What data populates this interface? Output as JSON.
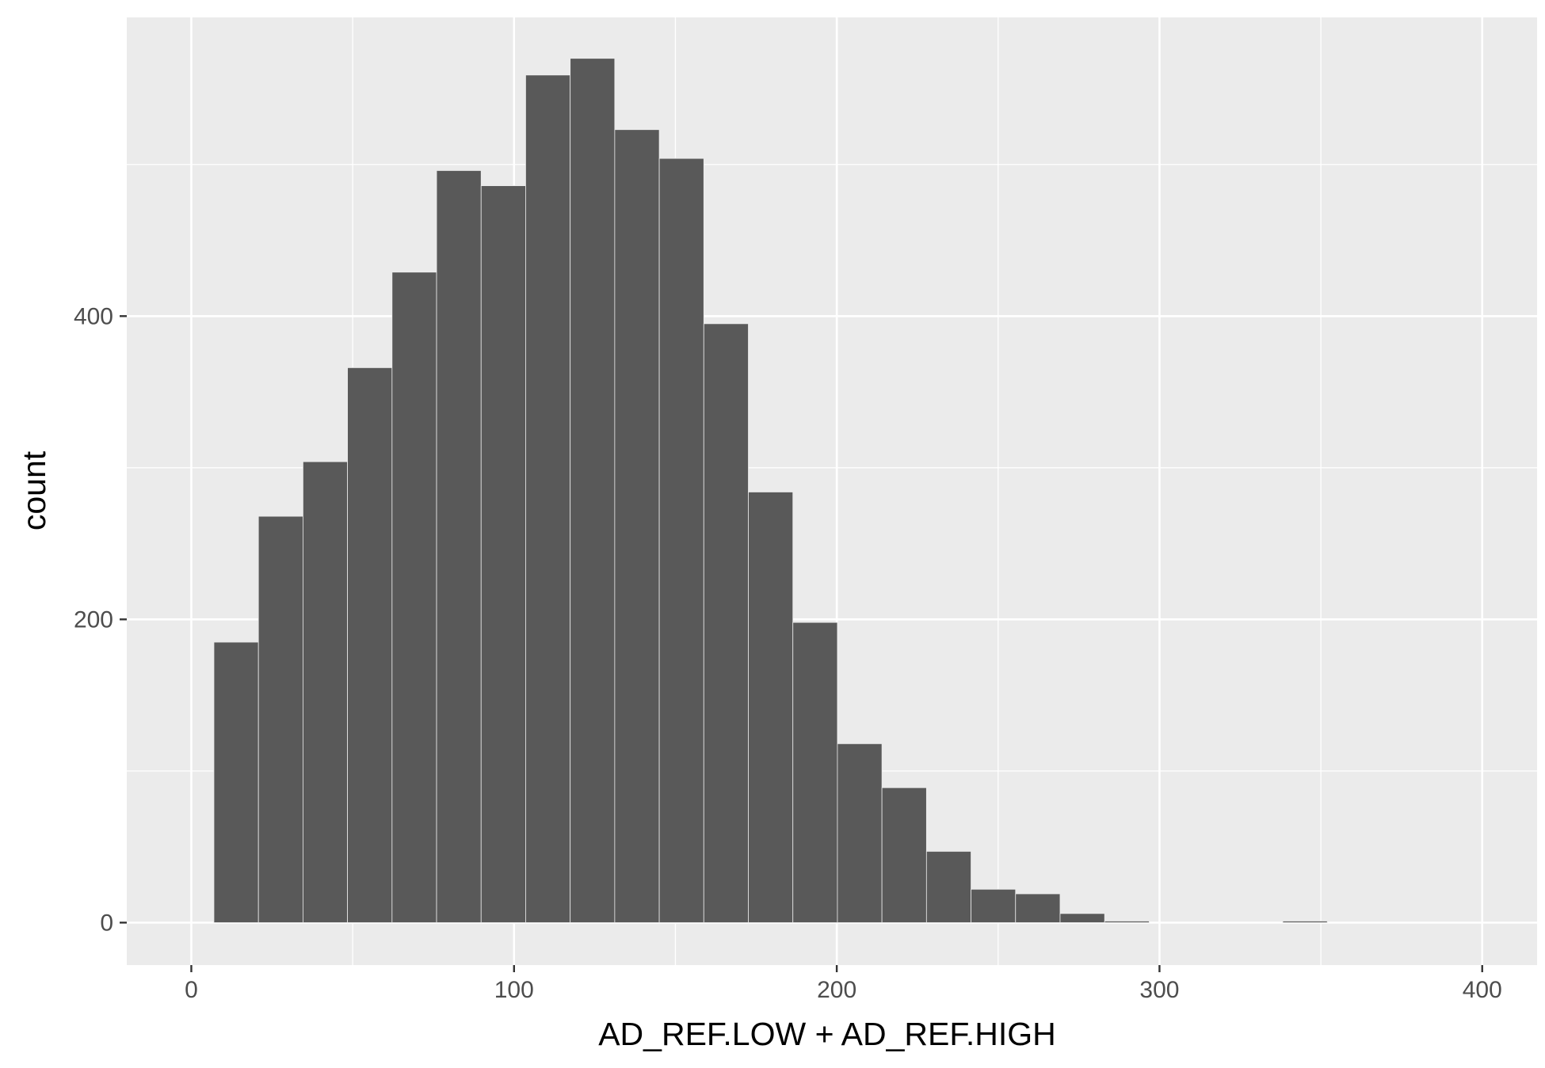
{
  "chart_data": {
    "type": "bar",
    "chart_style": "histogram",
    "title": "",
    "xlabel": "AD_REF.LOW + AD_REF.HIGH",
    "ylabel": "count",
    "xlim": [
      -20,
      417
    ],
    "ylim": [
      -28,
      597
    ],
    "grid": true,
    "x_ticks": [
      0,
      100,
      200,
      300,
      400
    ],
    "y_ticks": [
      0,
      200,
      400
    ],
    "bins": [
      {
        "x0": 7.0,
        "x1": 20.8,
        "count": 185
      },
      {
        "x0": 20.8,
        "x1": 34.6,
        "count": 268
      },
      {
        "x0": 34.6,
        "x1": 48.4,
        "count": 304
      },
      {
        "x0": 48.4,
        "x1": 62.2,
        "count": 366
      },
      {
        "x0": 62.2,
        "x1": 76.0,
        "count": 429
      },
      {
        "x0": 76.0,
        "x1": 89.8,
        "count": 496
      },
      {
        "x0": 89.8,
        "x1": 103.6,
        "count": 486
      },
      {
        "x0": 103.6,
        "x1": 117.4,
        "count": 559
      },
      {
        "x0": 117.4,
        "x1": 131.2,
        "count": 570
      },
      {
        "x0": 131.2,
        "x1": 145.0,
        "count": 523
      },
      {
        "x0": 145.0,
        "x1": 158.8,
        "count": 504
      },
      {
        "x0": 158.8,
        "x1": 172.6,
        "count": 395
      },
      {
        "x0": 172.6,
        "x1": 186.4,
        "count": 284
      },
      {
        "x0": 186.4,
        "x1": 200.2,
        "count": 198
      },
      {
        "x0": 200.2,
        "x1": 214.0,
        "count": 118
      },
      {
        "x0": 214.0,
        "x1": 227.8,
        "count": 89
      },
      {
        "x0": 227.8,
        "x1": 241.6,
        "count": 47
      },
      {
        "x0": 241.6,
        "x1": 255.4,
        "count": 22
      },
      {
        "x0": 255.4,
        "x1": 269.2,
        "count": 19
      },
      {
        "x0": 269.2,
        "x1": 283.0,
        "count": 6
      },
      {
        "x0": 283.0,
        "x1": 296.8,
        "count": 1
      },
      {
        "x0": 296.8,
        "x1": 310.6,
        "count": 0
      },
      {
        "x0": 310.6,
        "x1": 324.4,
        "count": 0
      },
      {
        "x0": 324.4,
        "x1": 338.2,
        "count": 0
      },
      {
        "x0": 338.2,
        "x1": 352.0,
        "count": 1
      }
    ],
    "colors": {
      "panel": "#ebebeb",
      "grid": "#ffffff",
      "bar": "#595959",
      "tick_text": "#4d4d4d",
      "tick_mark": "#333333",
      "title_text": "#000000"
    }
  }
}
